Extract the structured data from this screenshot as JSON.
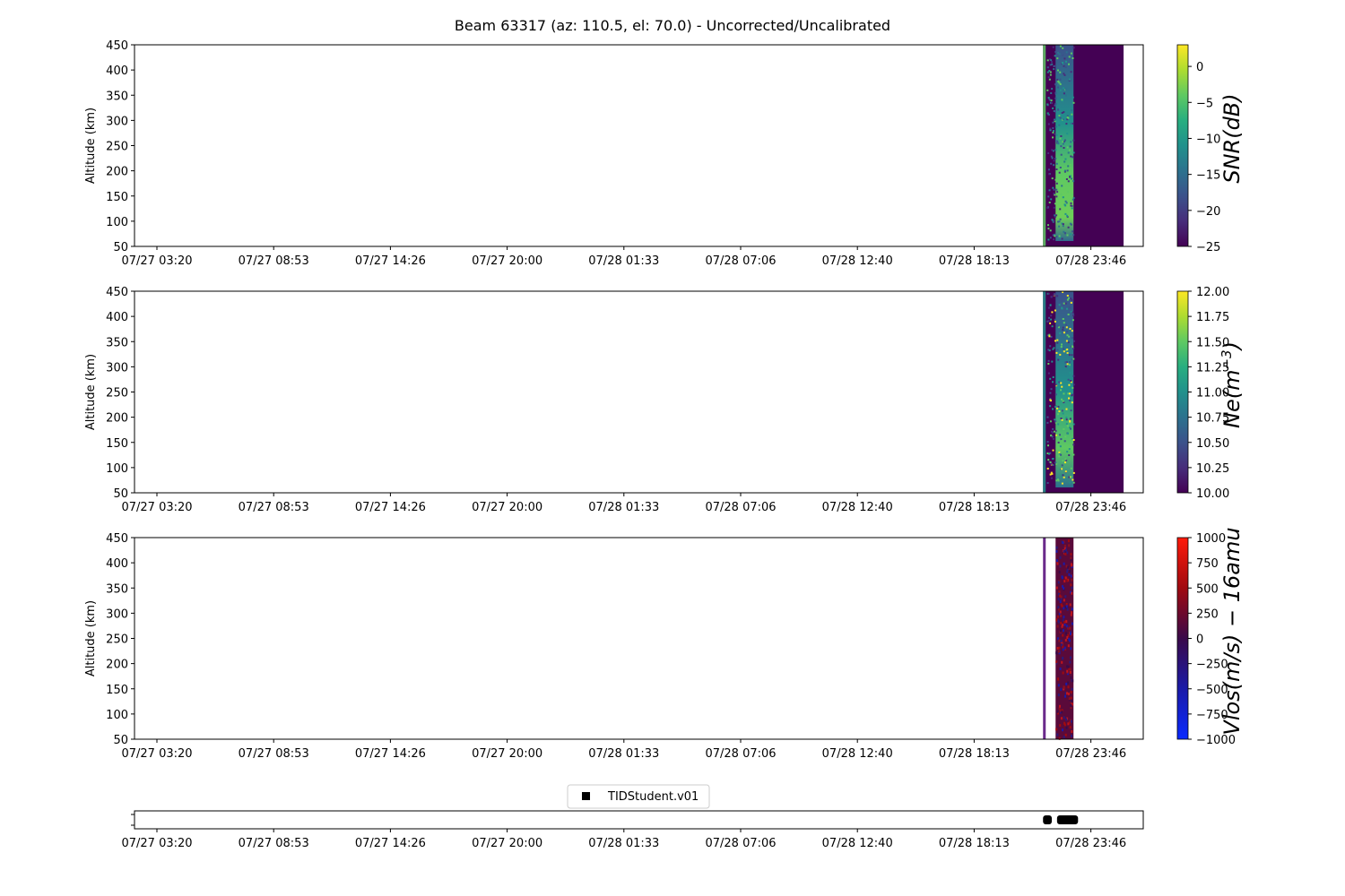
{
  "title": "Beam 63317 (az: 110.5, el: 70.0) - Uncorrected/Uncalibrated",
  "chart_data": [
    {
      "type": "heatmap",
      "ylabel": "Altitude (km)",
      "ylim": [
        50,
        450
      ],
      "yticks": [
        "50",
        "100",
        "150",
        "200",
        "250",
        "300",
        "350",
        "400",
        "450"
      ],
      "xticks": [
        "07/27 03:20",
        "07/27 08:53",
        "07/27 14:26",
        "07/27 20:00",
        "07/28 01:33",
        "07/28 07:06",
        "07/28 12:40",
        "07/28 18:13",
        "07/28 23:46"
      ],
      "colorbar": {
        "label": "SNR(dB)",
        "colormap": "viridis",
        "range": [
          -25,
          3
        ],
        "ticks": [
          "0",
          "−5",
          "−10",
          "−15",
          "−20",
          "−25"
        ]
      },
      "data_time_span": [
        "07/28 21:30",
        "07/29 01:20"
      ],
      "colors": {
        "background": "#440154",
        "low": "#482878",
        "mid": "#31688e",
        "high": "#6ece58"
      }
    },
    {
      "type": "heatmap",
      "ylabel": "Altitude (km)",
      "ylim": [
        50,
        450
      ],
      "yticks": [
        "50",
        "100",
        "150",
        "200",
        "250",
        "300",
        "350",
        "400",
        "450"
      ],
      "xticks": [
        "07/27 03:20",
        "07/27 08:53",
        "07/27 14:26",
        "07/27 20:00",
        "07/28 01:33",
        "07/28 07:06",
        "07/28 12:40",
        "07/28 18:13",
        "07/28 23:46"
      ],
      "colorbar": {
        "label_main": "Ne(m",
        "label_sup": "−3",
        "label_end": ")",
        "colormap": "viridis",
        "range": [
          10.0,
          12.0
        ],
        "ticks": [
          "12.00",
          "11.75",
          "11.50",
          "11.25",
          "11.00",
          "10.75",
          "10.50",
          "10.25",
          "10.00"
        ]
      },
      "data_time_span": [
        "07/28 21:30",
        "07/29 01:20"
      ]
    },
    {
      "type": "heatmap",
      "ylabel": "Altitude (km)",
      "ylim": [
        50,
        450
      ],
      "yticks": [
        "50",
        "100",
        "150",
        "200",
        "250",
        "300",
        "350",
        "400",
        "450"
      ],
      "xticks": [
        "07/27 03:20",
        "07/27 08:53",
        "07/27 14:26",
        "07/27 20:00",
        "07/28 01:33",
        "07/28 07:06",
        "07/28 12:40",
        "07/28 18:13",
        "07/28 23:46"
      ],
      "colorbar": {
        "label": "Vlos(m/s) − 16amu",
        "colormap": "blue-red",
        "range": [
          -1000,
          1000
        ],
        "ticks": [
          "1000",
          "750",
          "500",
          "250",
          "0",
          "−250",
          "−500",
          "−750",
          "−1000"
        ]
      },
      "data_time_span": [
        "07/28 21:30",
        "07/28 23:00"
      ]
    },
    {
      "type": "scatter",
      "legend": [
        "TIDStudent.v01"
      ],
      "legend_position": "top-center",
      "xticks": [
        "07/27 03:20",
        "07/27 08:53",
        "07/27 14:26",
        "07/27 20:00",
        "07/28 01:33",
        "07/28 07:06",
        "07/28 12:40",
        "07/28 18:13",
        "07/28 23:46"
      ],
      "marker": "square",
      "marker_color": "#000000",
      "segments": [
        [
          "07/28 21:30",
          "07/28 21:55"
        ],
        [
          "07/28 22:10",
          "07/28 23:10"
        ]
      ]
    }
  ]
}
